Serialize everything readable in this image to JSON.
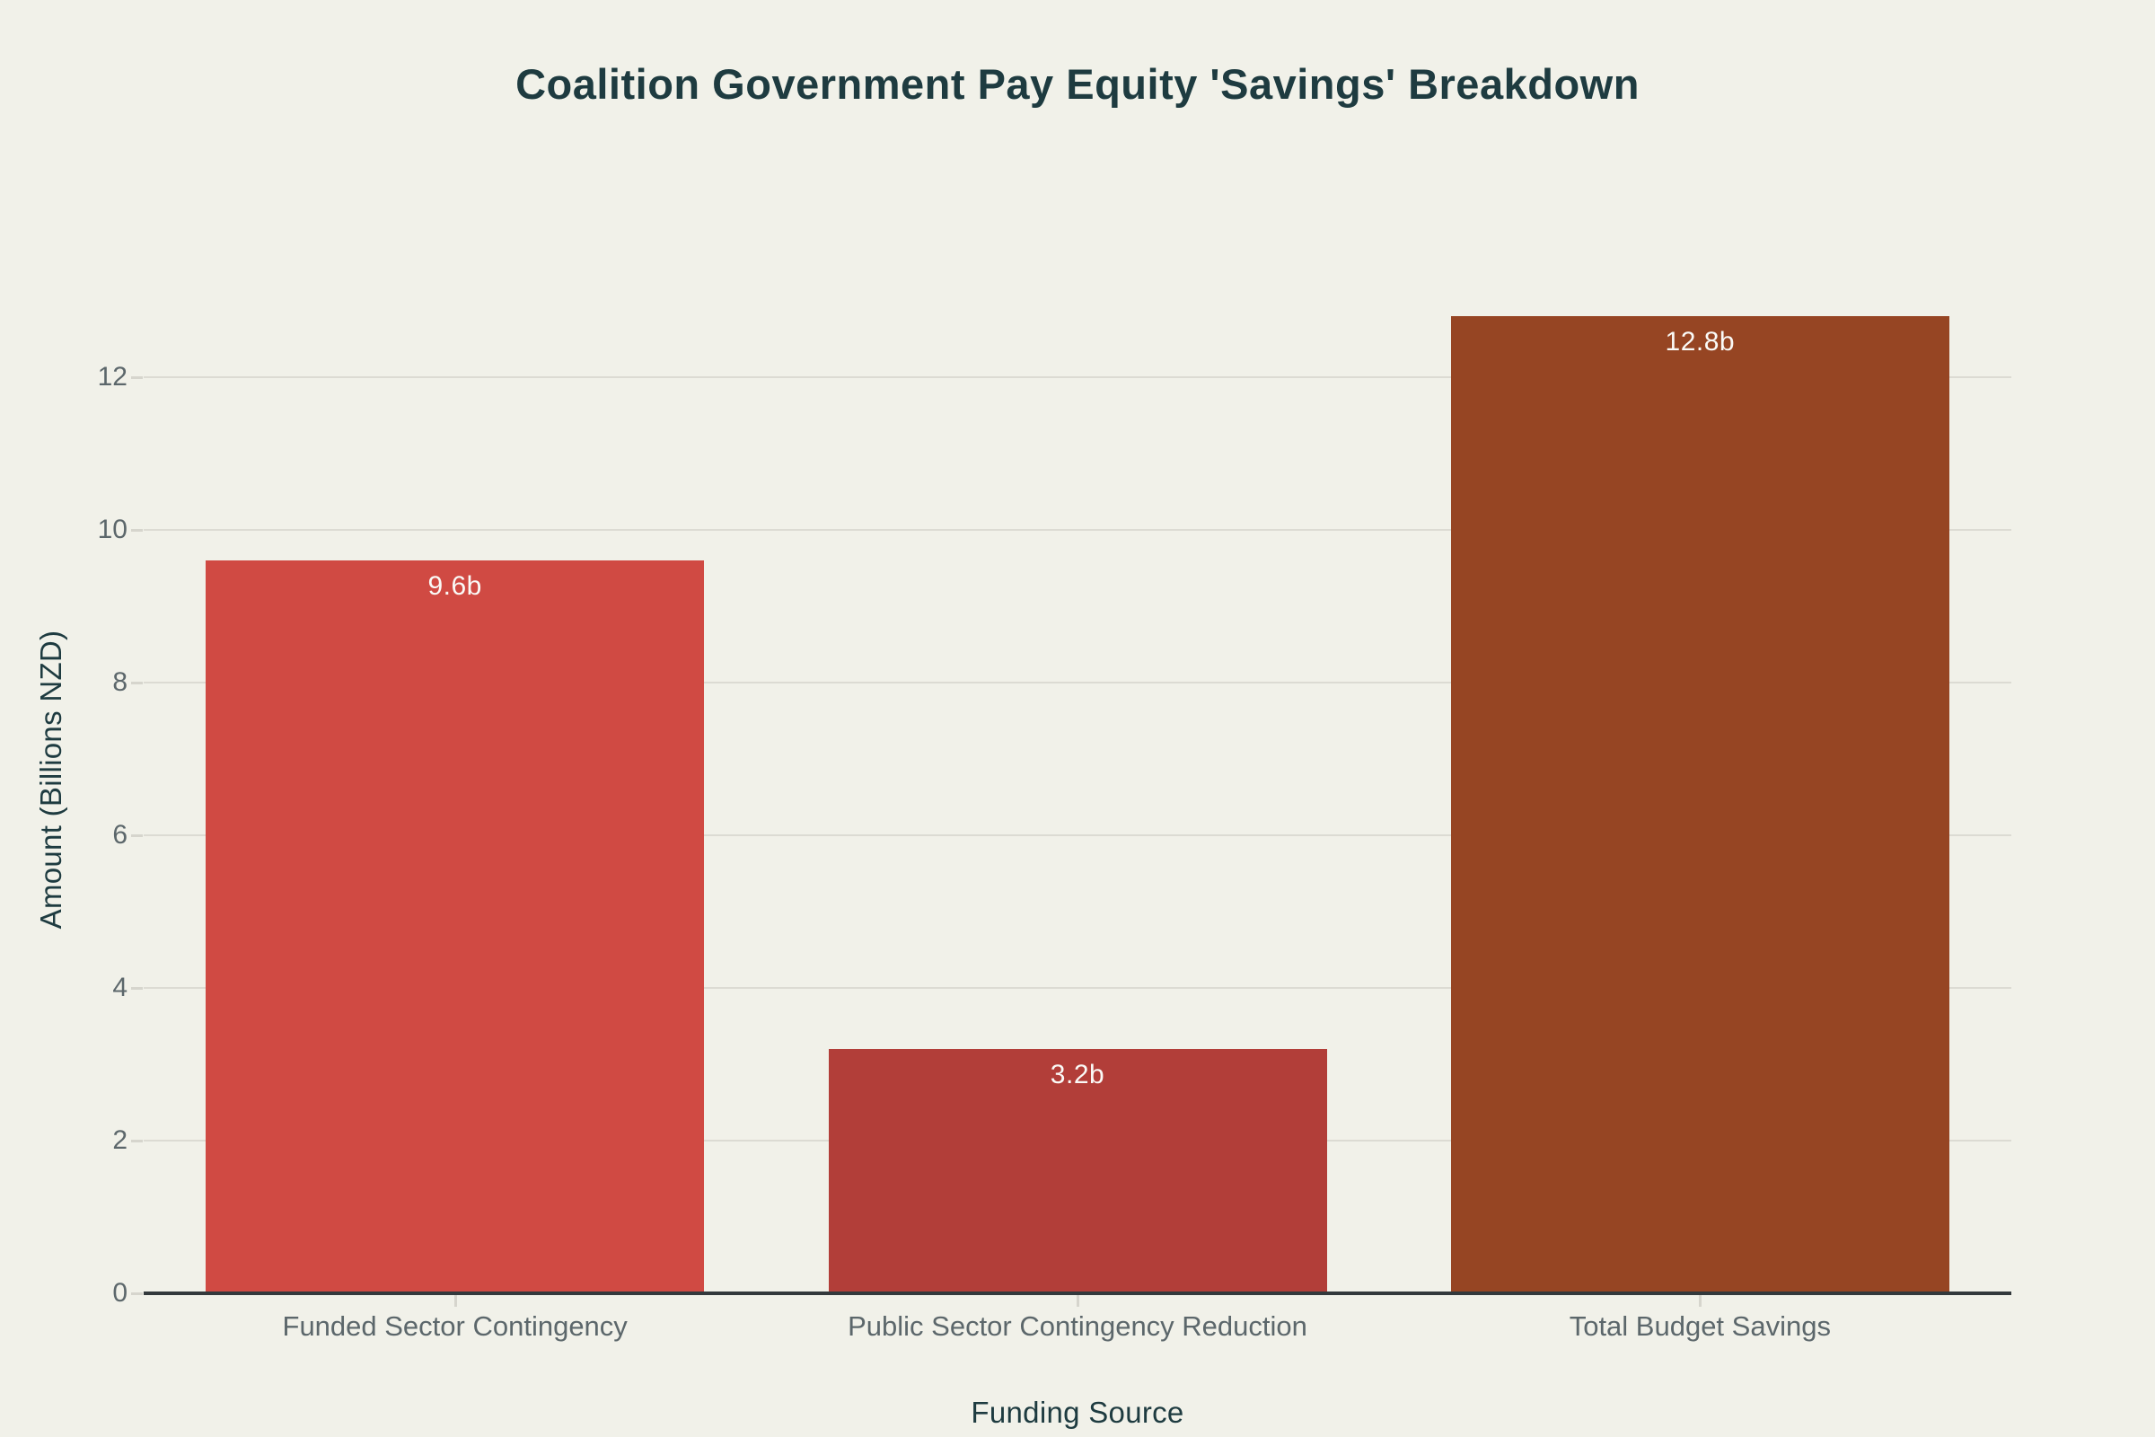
{
  "chart_data": {
    "type": "bar",
    "title": "Coalition Government Pay Equity 'Savings' Breakdown",
    "xlabel": "Funding Source",
    "ylabel": "Amount (Billions NZD)",
    "categories": [
      "Funded Sector Contingency",
      "Public Sector Contingency Reduction",
      "Total Budget Savings"
    ],
    "values": [
      9.6,
      3.2,
      12.8
    ],
    "bar_labels": [
      "9.6b",
      "3.2b",
      "12.8b"
    ],
    "bar_colors": [
      "#d04a43",
      "#b23e39",
      "#964523"
    ],
    "yticks": [
      0,
      2,
      4,
      6,
      8,
      10,
      12
    ],
    "ylim": [
      0,
      13.5
    ],
    "grid": true,
    "legend": "none",
    "colors": {
      "background": "#f1f1e9",
      "title_text": "#1e3b40",
      "axis_title_text": "#1e3b40",
      "tick_label_text": "#5c676b",
      "gridline": "#dcdbd3",
      "tick_mark": "#d6d5cd",
      "axis_line": "#33393c",
      "bar_label_text": "#fafaf7"
    }
  }
}
